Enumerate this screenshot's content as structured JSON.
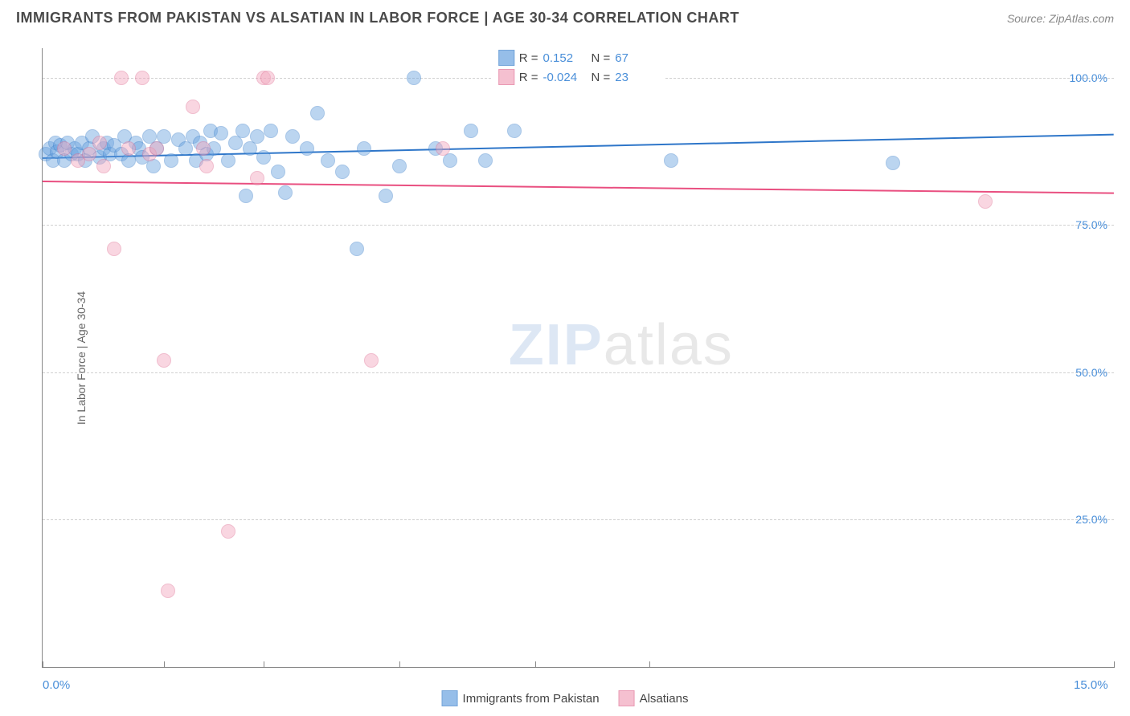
{
  "header": {
    "title": "IMMIGRANTS FROM PAKISTAN VS ALSATIAN IN LABOR FORCE | AGE 30-34 CORRELATION CHART",
    "source_prefix": "Source: ",
    "source": "ZipAtlas.com"
  },
  "chart": {
    "type": "scatter",
    "y_label": "In Labor Force | Age 30-34",
    "background_color": "#ffffff",
    "grid_color": "#d0d0d0",
    "axis_color": "#888888",
    "xlim": [
      0,
      15
    ],
    "ylim": [
      0,
      105
    ],
    "xticks": [
      0,
      1.7,
      3.1,
      5.0,
      6.9,
      8.5,
      15
    ],
    "xtick_labels": {
      "0": "0.0%",
      "15": "15.0%"
    },
    "yticks": [
      25,
      50,
      75,
      100
    ],
    "ytick_labels": {
      "25": "25.0%",
      "50": "50.0%",
      "75": "75.0%",
      "100": "100.0%"
    },
    "marker_radius": 9,
    "marker_opacity": 0.45,
    "series": [
      {
        "id": "pakistan",
        "label": "Immigrants from Pakistan",
        "color": "#6aa3e0",
        "border": "#3b7fc9",
        "R": "0.152",
        "N": "67",
        "trend": {
          "y_at_xmin": 86.5,
          "y_at_xmax": 90.5,
          "color": "#2e76c9",
          "width": 2
        },
        "points": [
          [
            0.05,
            87
          ],
          [
            0.1,
            88
          ],
          [
            0.15,
            86
          ],
          [
            0.18,
            89
          ],
          [
            0.2,
            87.5
          ],
          [
            0.25,
            88.5
          ],
          [
            0.3,
            86
          ],
          [
            0.35,
            89
          ],
          [
            0.4,
            87
          ],
          [
            0.45,
            88
          ],
          [
            0.5,
            87
          ],
          [
            0.55,
            89
          ],
          [
            0.6,
            86
          ],
          [
            0.65,
            88
          ],
          [
            0.7,
            90
          ],
          [
            0.8,
            86.5
          ],
          [
            0.85,
            88
          ],
          [
            0.9,
            89
          ],
          [
            0.95,
            87
          ],
          [
            1.0,
            88.5
          ],
          [
            1.1,
            87
          ],
          [
            1.15,
            90
          ],
          [
            1.2,
            86
          ],
          [
            1.3,
            89
          ],
          [
            1.35,
            88
          ],
          [
            1.4,
            86.5
          ],
          [
            1.5,
            90
          ],
          [
            1.55,
            85
          ],
          [
            1.6,
            88
          ],
          [
            1.7,
            90
          ],
          [
            1.8,
            86
          ],
          [
            1.9,
            89.5
          ],
          [
            2.0,
            88
          ],
          [
            2.1,
            90
          ],
          [
            2.15,
            86
          ],
          [
            2.2,
            89
          ],
          [
            2.3,
            87
          ],
          [
            2.35,
            91
          ],
          [
            2.4,
            88
          ],
          [
            2.5,
            90.5
          ],
          [
            2.6,
            86
          ],
          [
            2.7,
            89
          ],
          [
            2.8,
            91
          ],
          [
            2.85,
            80
          ],
          [
            2.9,
            88
          ],
          [
            3.0,
            90
          ],
          [
            3.1,
            86.5
          ],
          [
            3.2,
            91
          ],
          [
            3.3,
            84
          ],
          [
            3.4,
            80.5
          ],
          [
            3.5,
            90
          ],
          [
            3.7,
            88
          ],
          [
            3.85,
            94
          ],
          [
            4.0,
            86
          ],
          [
            4.2,
            84
          ],
          [
            4.4,
            71
          ],
          [
            4.5,
            88
          ],
          [
            4.8,
            80
          ],
          [
            5.0,
            85
          ],
          [
            5.2,
            100
          ],
          [
            5.5,
            88
          ],
          [
            5.7,
            86
          ],
          [
            6.0,
            91
          ],
          [
            6.2,
            86
          ],
          [
            6.6,
            91
          ],
          [
            8.8,
            86
          ],
          [
            11.9,
            85.5
          ]
        ]
      },
      {
        "id": "alsatians",
        "label": "Alsatians",
        "color": "#f2a6bd",
        "border": "#e06f93",
        "R": "-0.024",
        "N": "23",
        "trend": {
          "y_at_xmin": 82.5,
          "y_at_xmax": 80.5,
          "color": "#e94f80",
          "width": 2
        },
        "points": [
          [
            0.3,
            88
          ],
          [
            0.5,
            86
          ],
          [
            0.65,
            87
          ],
          [
            0.8,
            89
          ],
          [
            0.85,
            85
          ],
          [
            1.0,
            71
          ],
          [
            1.1,
            100
          ],
          [
            1.2,
            88
          ],
          [
            1.4,
            100
          ],
          [
            1.5,
            87
          ],
          [
            1.6,
            88
          ],
          [
            1.7,
            52
          ],
          [
            1.75,
            13
          ],
          [
            2.1,
            95
          ],
          [
            2.25,
            88
          ],
          [
            2.3,
            85
          ],
          [
            2.6,
            23
          ],
          [
            3.0,
            83
          ],
          [
            3.1,
            100
          ],
          [
            3.15,
            100
          ],
          [
            4.6,
            52
          ],
          [
            5.6,
            88
          ],
          [
            13.2,
            79
          ]
        ]
      }
    ]
  },
  "legend_top": {
    "R_prefix": "R =",
    "N_prefix": "N ="
  },
  "watermark": {
    "z": "ZIP",
    "rest": "atlas"
  }
}
